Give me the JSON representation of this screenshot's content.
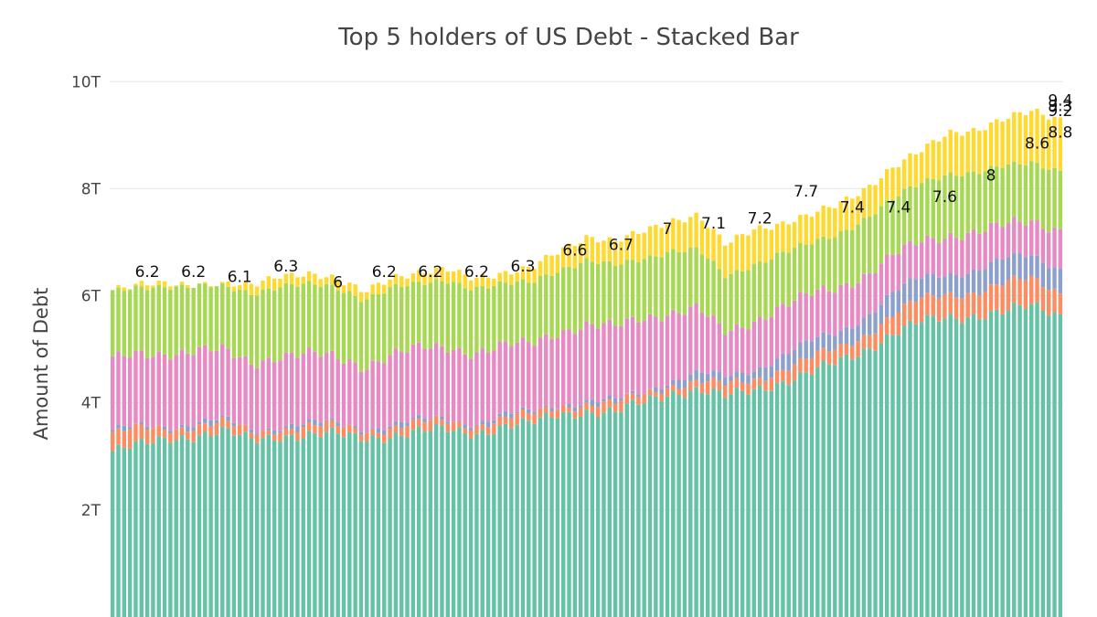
{
  "chart_data": {
    "type": "bar",
    "stacked": true,
    "title": "Top 5 holders of US Debt - Stacked Bar",
    "xlabel": "",
    "ylabel": "Amount of Debt",
    "ylim": [
      0,
      10.5
    ],
    "y_unit": "T",
    "yticks": [
      {
        "value": 2,
        "label": "2T"
      },
      {
        "value": 4,
        "label": "4T"
      },
      {
        "value": 6,
        "label": "6T"
      },
      {
        "value": 8,
        "label": "8T"
      },
      {
        "value": 10,
        "label": "10T"
      }
    ],
    "grid": true,
    "legend": "none",
    "bar_count": 165,
    "series_colors": [
      "#66c2a5",
      "#fc8d62",
      "#8da0cb",
      "#e78ac3",
      "#a6d854",
      "#ffd92f"
    ],
    "series": [
      {
        "values": [
          3.1,
          3.2,
          3.35,
          3.4,
          3.45,
          3.3,
          3.4,
          3.4,
          3.4,
          3.35,
          3.4,
          3.45,
          3.5,
          3.45,
          3.55,
          3.6,
          3.8,
          3.85,
          3.8,
          4.0,
          4.2,
          4.25,
          4.1,
          4.25,
          4.4,
          4.55,
          4.75,
          5.0,
          5.3,
          5.5,
          5.6,
          5.65,
          5.7,
          5.8,
          5.65
        ]
      },
      {
        "values": [
          0.3,
          0.3,
          0.2,
          0.18,
          0.15,
          0.15,
          0.15,
          0.15,
          0.15,
          0.15,
          0.15,
          0.15,
          0.15,
          0.15,
          0.15,
          0.15,
          0.15,
          0.15,
          0.15,
          0.15,
          0.15,
          0.15,
          0.2,
          0.2,
          0.25,
          0.25,
          0.25,
          0.3,
          0.35,
          0.4,
          0.45,
          0.45,
          0.5,
          0.5,
          0.45
        ]
      },
      {
        "values": [
          0.05,
          0.05,
          0.05,
          0.05,
          0.05,
          0.05,
          0.05,
          0.05,
          0.05,
          0.05,
          0.05,
          0.05,
          0.05,
          0.05,
          0.05,
          0.05,
          0.05,
          0.05,
          0.05,
          0.05,
          0.1,
          0.15,
          0.15,
          0.2,
          0.25,
          0.3,
          0.3,
          0.35,
          0.4,
          0.4,
          0.4,
          0.4,
          0.45,
          0.45,
          0.45
        ]
      },
      {
        "values": [
          1.35,
          1.35,
          1.35,
          1.35,
          1.3,
          1.25,
          1.3,
          1.3,
          1.25,
          1.15,
          1.3,
          1.35,
          1.35,
          1.3,
          1.3,
          1.3,
          1.35,
          1.4,
          1.4,
          1.4,
          1.25,
          1.2,
          0.85,
          0.9,
          0.9,
          0.9,
          0.85,
          0.75,
          0.7,
          0.7,
          0.7,
          0.7,
          0.65,
          0.65,
          0.7
        ]
      },
      {
        "values": [
          1.25,
          1.25,
          1.25,
          1.2,
          1.2,
          1.3,
          1.3,
          1.3,
          1.3,
          1.25,
          1.25,
          1.2,
          1.25,
          1.2,
          1.15,
          1.15,
          1.15,
          1.2,
          1.15,
          1.1,
          1.15,
          1.1,
          1.05,
          1.05,
          1.0,
          0.95,
          1.0,
          1.05,
          1.05,
          1.1,
          1.15,
          1.1,
          1.1,
          1.1,
          1.1
        ]
      },
      {
        "values": [
          0.05,
          0.05,
          0.05,
          0.02,
          0.05,
          0.15,
          0.2,
          0.2,
          0.15,
          0.15,
          0.2,
          0.2,
          0.2,
          0.2,
          0.2,
          0.25,
          0.35,
          0.45,
          0.45,
          0.5,
          0.55,
          0.65,
          0.6,
          0.65,
          0.55,
          0.55,
          0.55,
          0.55,
          0.6,
          0.6,
          0.75,
          0.8,
          0.9,
          0.95,
          0.95
        ]
      }
    ],
    "total_labels": [
      {
        "bar": 6,
        "label": "6.2"
      },
      {
        "bar": 14,
        "label": "6.2"
      },
      {
        "bar": 22,
        "label": "6.1"
      },
      {
        "bar": 30,
        "label": "6.3"
      },
      {
        "bar": 39,
        "label": "6"
      },
      {
        "bar": 47,
        "label": "6.2"
      },
      {
        "bar": 55,
        "label": "6.2"
      },
      {
        "bar": 63,
        "label": "6.2"
      },
      {
        "bar": 71,
        "label": "6.3"
      },
      {
        "bar": 80,
        "label": "6.6"
      },
      {
        "bar": 88,
        "label": "6.7"
      },
      {
        "bar": 96,
        "label": "7"
      },
      {
        "bar": 104,
        "label": "7.1"
      },
      {
        "bar": 112,
        "label": "7.2"
      },
      {
        "bar": 120,
        "label": "7.7"
      },
      {
        "bar": 128,
        "label": "7.4"
      },
      {
        "bar": 136,
        "label": "7.4"
      },
      {
        "bar": 144,
        "label": "7.6"
      },
      {
        "bar": 152,
        "label": "8"
      },
      {
        "bar": 160,
        "label": "8.6"
      },
      {
        "bar": 168,
        "label": "8.8"
      },
      {
        "bar": 176,
        "label": "9.2"
      },
      {
        "bar": 184,
        "label": "9.4"
      },
      {
        "bar": 191,
        "label": "9.3"
      }
    ]
  }
}
